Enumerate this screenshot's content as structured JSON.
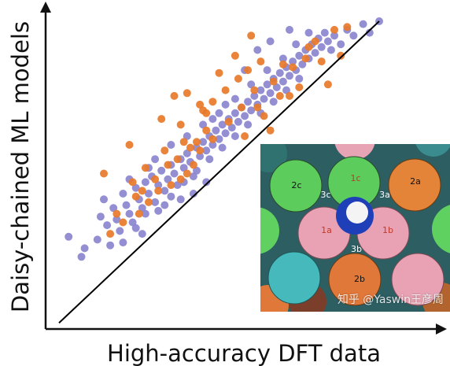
{
  "chart_data": {
    "type": "scatter",
    "title": "",
    "xlabel": "High-accuracy DFT data",
    "ylabel": "Daisy-chained ML models",
    "xlim": [
      0,
      1
    ],
    "ylim": [
      0,
      1
    ],
    "grid": false,
    "ticks": false,
    "series": [
      {
        "color": "#8b86cf",
        "points": [
          [
            0.03,
            0.25
          ],
          [
            0.07,
            0.18
          ],
          [
            0.08,
            0.21
          ],
          [
            0.12,
            0.24
          ],
          [
            0.13,
            0.32
          ],
          [
            0.14,
            0.38
          ],
          [
            0.15,
            0.29
          ],
          [
            0.16,
            0.22
          ],
          [
            0.17,
            0.35
          ],
          [
            0.18,
            0.31
          ],
          [
            0.19,
            0.27
          ],
          [
            0.2,
            0.4
          ],
          [
            0.21,
            0.36
          ],
          [
            0.22,
            0.33
          ],
          [
            0.23,
            0.3
          ],
          [
            0.24,
            0.42
          ],
          [
            0.25,
            0.38
          ],
          [
            0.26,
            0.35
          ],
          [
            0.27,
            0.44
          ],
          [
            0.28,
            0.4
          ],
          [
            0.29,
            0.46
          ],
          [
            0.3,
            0.37
          ],
          [
            0.31,
            0.43
          ],
          [
            0.32,
            0.48
          ],
          [
            0.33,
            0.41
          ],
          [
            0.34,
            0.45
          ],
          [
            0.35,
            0.5
          ],
          [
            0.36,
            0.47
          ],
          [
            0.37,
            0.43
          ],
          [
            0.38,
            0.52
          ],
          [
            0.39,
            0.49
          ],
          [
            0.4,
            0.54
          ],
          [
            0.41,
            0.51
          ],
          [
            0.42,
            0.46
          ],
          [
            0.43,
            0.56
          ],
          [
            0.44,
            0.53
          ],
          [
            0.45,
            0.58
          ],
          [
            0.46,
            0.55
          ],
          [
            0.47,
            0.6
          ],
          [
            0.48,
            0.57
          ],
          [
            0.49,
            0.62
          ],
          [
            0.5,
            0.59
          ],
          [
            0.51,
            0.64
          ],
          [
            0.52,
            0.61
          ],
          [
            0.53,
            0.66
          ],
          [
            0.54,
            0.63
          ],
          [
            0.55,
            0.68
          ],
          [
            0.56,
            0.65
          ],
          [
            0.57,
            0.7
          ],
          [
            0.58,
            0.67
          ],
          [
            0.59,
            0.72
          ],
          [
            0.6,
            0.69
          ],
          [
            0.61,
            0.74
          ],
          [
            0.62,
            0.71
          ],
          [
            0.63,
            0.76
          ],
          [
            0.64,
            0.73
          ],
          [
            0.65,
            0.78
          ],
          [
            0.66,
            0.75
          ],
          [
            0.67,
            0.8
          ],
          [
            0.68,
            0.77
          ],
          [
            0.69,
            0.82
          ],
          [
            0.7,
            0.79
          ],
          [
            0.71,
            0.84
          ],
          [
            0.72,
            0.81
          ],
          [
            0.73,
            0.86
          ],
          [
            0.74,
            0.83
          ],
          [
            0.75,
            0.88
          ],
          [
            0.76,
            0.85
          ],
          [
            0.77,
            0.9
          ],
          [
            0.78,
            0.87
          ],
          [
            0.79,
            0.92
          ],
          [
            0.8,
            0.89
          ],
          [
            0.81,
            0.94
          ],
          [
            0.82,
            0.91
          ],
          [
            0.83,
            0.96
          ],
          [
            0.84,
            0.93
          ],
          [
            0.85,
            0.9
          ],
          [
            0.86,
            0.95
          ],
          [
            0.88,
            0.92
          ],
          [
            0.9,
            0.97
          ],
          [
            0.92,
            0.95
          ],
          [
            0.95,
            0.99
          ],
          [
            0.97,
            0.96
          ],
          [
            1.0,
            1.0
          ],
          [
            0.24,
            0.28
          ],
          [
            0.27,
            0.33
          ],
          [
            0.31,
            0.34
          ],
          [
            0.35,
            0.39
          ],
          [
            0.39,
            0.44
          ],
          [
            0.43,
            0.48
          ],
          [
            0.47,
            0.52
          ],
          [
            0.51,
            0.56
          ],
          [
            0.55,
            0.6
          ],
          [
            0.59,
            0.64
          ],
          [
            0.63,
            0.68
          ],
          [
            0.67,
            0.72
          ],
          [
            0.71,
            0.76
          ],
          [
            0.75,
            0.8
          ],
          [
            0.3,
            0.52
          ],
          [
            0.28,
            0.49
          ],
          [
            0.22,
            0.45
          ],
          [
            0.35,
            0.57
          ],
          [
            0.4,
            0.6
          ],
          [
            0.45,
            0.64
          ],
          [
            0.5,
            0.68
          ],
          [
            0.55,
            0.73
          ],
          [
            0.6,
            0.78
          ],
          [
            0.65,
            0.83
          ],
          [
            0.7,
            0.87
          ],
          [
            0.74,
            0.92
          ],
          [
            0.78,
            0.96
          ],
          [
            0.58,
            0.83
          ],
          [
            0.62,
            0.9
          ],
          [
            0.66,
            0.93
          ],
          [
            0.72,
            0.97
          ],
          [
            0.52,
            0.71
          ],
          [
            0.48,
            0.66
          ],
          [
            0.38,
            0.38
          ],
          [
            0.42,
            0.4
          ],
          [
            0.46,
            0.44
          ],
          [
            0.26,
            0.26
          ],
          [
            0.2,
            0.23
          ],
          [
            0.33,
            0.36
          ]
        ]
      },
      {
        "color": "#e87a2a",
        "points": [
          [
            0.14,
            0.47
          ],
          [
            0.22,
            0.57
          ],
          [
            0.32,
            0.66
          ],
          [
            0.36,
            0.74
          ],
          [
            0.38,
            0.64
          ],
          [
            0.4,
            0.75
          ],
          [
            0.45,
            0.69
          ],
          [
            0.5,
            0.82
          ],
          [
            0.55,
            0.88
          ],
          [
            0.6,
            0.95
          ],
          [
            0.7,
            0.85
          ],
          [
            0.72,
            0.74
          ],
          [
            0.78,
            0.91
          ],
          [
            0.82,
            0.86
          ],
          [
            0.88,
            0.88
          ],
          [
            0.84,
            0.78
          ],
          [
            0.64,
            0.67
          ],
          [
            0.66,
            0.62
          ],
          [
            0.58,
            0.6
          ],
          [
            0.48,
            0.59
          ],
          [
            0.44,
            0.55
          ],
          [
            0.42,
            0.5
          ],
          [
            0.4,
            0.47
          ],
          [
            0.38,
            0.45
          ],
          [
            0.35,
            0.43
          ],
          [
            0.31,
            0.41
          ],
          [
            0.28,
            0.37
          ],
          [
            0.25,
            0.33
          ],
          [
            0.2,
            0.3
          ],
          [
            0.16,
            0.26
          ],
          [
            0.18,
            0.33
          ],
          [
            0.24,
            0.39
          ],
          [
            0.3,
            0.45
          ],
          [
            0.34,
            0.5
          ],
          [
            0.43,
            0.58
          ],
          [
            0.46,
            0.62
          ],
          [
            0.53,
            0.65
          ],
          [
            0.57,
            0.7
          ],
          [
            0.61,
            0.76
          ],
          [
            0.67,
            0.79
          ],
          [
            0.73,
            0.84
          ],
          [
            0.77,
            0.87
          ],
          [
            0.8,
            0.93
          ],
          [
            0.86,
            0.97
          ],
          [
            0.9,
            0.98
          ],
          [
            0.52,
            0.76
          ],
          [
            0.56,
            0.8
          ],
          [
            0.48,
            0.72
          ],
          [
            0.33,
            0.55
          ],
          [
            0.27,
            0.49
          ],
          [
            0.23,
            0.44
          ],
          [
            0.26,
            0.41
          ],
          [
            0.37,
            0.52
          ],
          [
            0.41,
            0.56
          ],
          [
            0.62,
            0.7
          ],
          [
            0.69,
            0.74
          ],
          [
            0.75,
            0.77
          ],
          [
            0.59,
            0.83
          ],
          [
            0.63,
            0.86
          ],
          [
            0.46,
            0.68
          ],
          [
            0.44,
            0.71
          ],
          [
            0.39,
            0.58
          ]
        ]
      }
    ],
    "fit_line": [
      [
        0.0,
        -0.05
      ],
      [
        1.0,
        1.0
      ]
    ],
    "inset_labels": [
      "2c",
      "1c",
      "2a",
      "3c",
      "3a",
      "1a",
      "1b",
      "3b",
      "2b"
    ]
  },
  "watermark": "知乎 @Yaswin王彦周"
}
